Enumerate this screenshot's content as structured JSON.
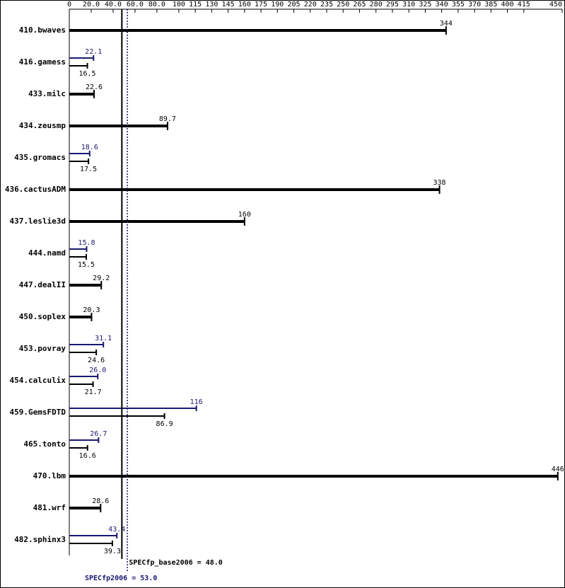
{
  "chart_data": {
    "type": "bar",
    "orientation": "horizontal",
    "categories": [
      "410.bwaves",
      "416.gamess",
      "433.milc",
      "434.zeusmp",
      "435.gromacs",
      "436.cactusADM",
      "437.leslie3d",
      "444.namd",
      "447.dealII",
      "450.soplex",
      "453.povray",
      "454.calculix",
      "459.GemsFDTD",
      "465.tonto",
      "470.lbm",
      "481.wrf",
      "482.sphinx3"
    ],
    "series": [
      {
        "color": "#000000",
        "values": [
          344,
          16.5,
          22.6,
          89.7,
          17.5,
          338,
          160,
          15.5,
          29.2,
          20.3,
          24.6,
          21.7,
          86.9,
          16.6,
          446,
          28.6,
          39.3
        ],
        "value_labels": [
          "344",
          "16.5",
          "22.6",
          "89.7",
          "17.5",
          "338",
          "160",
          "15.5",
          "29.2",
          "20.3",
          "24.6",
          "21.7",
          "86.9",
          "16.6",
          "446",
          "28.6",
          "39.3"
        ]
      },
      {
        "color": "#191970",
        "values": [
          null,
          22.1,
          null,
          null,
          18.6,
          null,
          null,
          15.8,
          null,
          null,
          31.1,
          26.0,
          116,
          26.7,
          null,
          null,
          43.4
        ],
        "value_labels": [
          null,
          "22.1",
          null,
          null,
          "18.6",
          null,
          null,
          "15.8",
          null,
          null,
          "31.1",
          "26.0",
          "116",
          "26.7",
          null,
          null,
          "43.4"
        ]
      }
    ],
    "xlim": [
      0,
      450
    ],
    "xticks": [
      0,
      {
        "value": 20,
        "label": "20.0"
      },
      {
        "value": 40,
        "label": "40.0"
      },
      {
        "value": 60,
        "label": "60.0"
      },
      {
        "value": 80,
        "label": "80.0"
      },
      100,
      115,
      130,
      145,
      160,
      175,
      190,
      205,
      220,
      235,
      250,
      265,
      280,
      295,
      310,
      325,
      340,
      355,
      370,
      385,
      400,
      415,
      450
    ],
    "reference_lines": [
      {
        "value": 48.0,
        "label": "SPECfp_base2006 = 48.0",
        "color": "#000000",
        "style": "solid"
      },
      {
        "value": 53.0,
        "label": "SPECfp2006 = 53.0",
        "color": "#191970",
        "style": "dotted"
      }
    ]
  }
}
